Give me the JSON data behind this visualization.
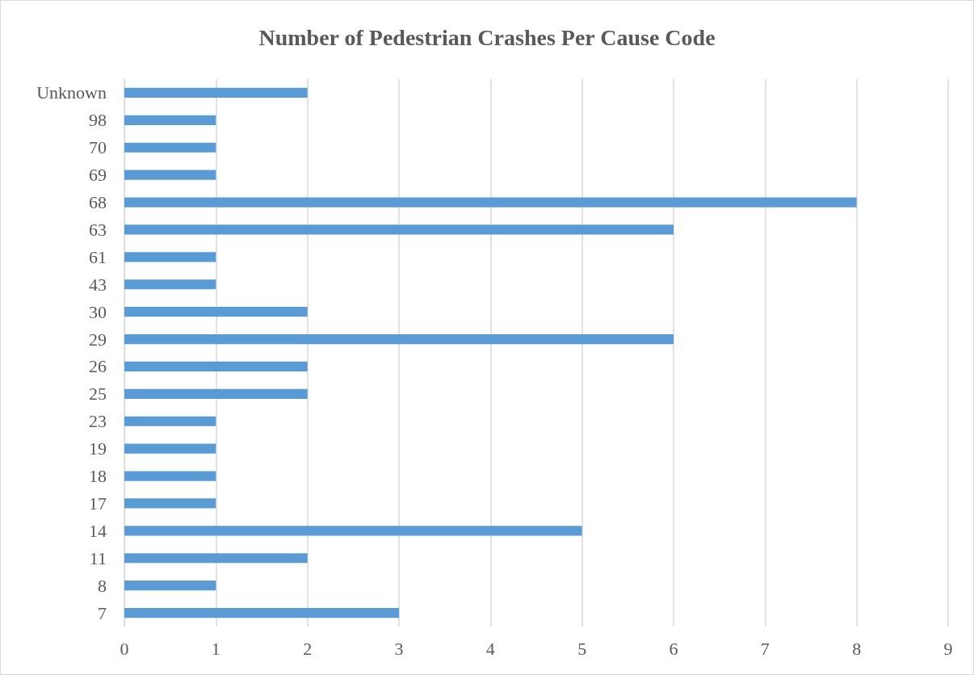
{
  "chart_data": {
    "type": "bar",
    "orientation": "horizontal",
    "title": "Number of Pedestrian Crashes Per Cause Code",
    "categories": [
      "Unknown",
      "98",
      "70",
      "69",
      "68",
      "63",
      "61",
      "43",
      "30",
      "29",
      "26",
      "25",
      "23",
      "19",
      "18",
      "17",
      "14",
      "11",
      "8",
      "7"
    ],
    "values": [
      2,
      1,
      1,
      1,
      8,
      6,
      1,
      1,
      2,
      6,
      2,
      2,
      1,
      1,
      1,
      1,
      5,
      2,
      1,
      3
    ],
    "color": "#5b9bd5",
    "xlim": [
      0,
      9
    ],
    "xticks": [
      0,
      1,
      2,
      3,
      4,
      5,
      6,
      7,
      8,
      9
    ],
    "grid": "x"
  }
}
